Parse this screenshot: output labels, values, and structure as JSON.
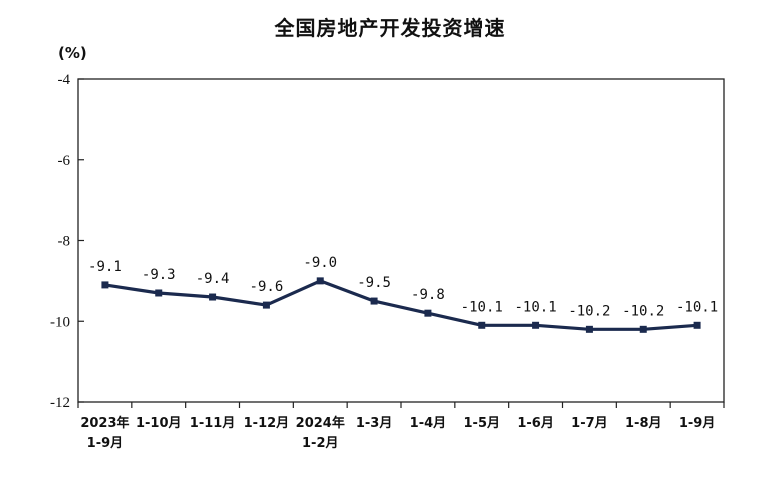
{
  "chart_data": {
    "type": "line",
    "title": "全国房地产开发投资增速",
    "y_unit": "(%)",
    "categories": [
      [
        "2023年",
        "1-9月"
      ],
      [
        "1-10月"
      ],
      [
        "1-11月"
      ],
      [
        "1-12月"
      ],
      [
        "2024年",
        "1-2月"
      ],
      [
        "1-3月"
      ],
      [
        "1-4月"
      ],
      [
        "1-5月"
      ],
      [
        "1-6月"
      ],
      [
        "1-7月"
      ],
      [
        "1-8月"
      ],
      [
        "1-9月"
      ]
    ],
    "values": [
      -9.1,
      -9.3,
      -9.4,
      -9.6,
      -9.0,
      -9.5,
      -9.8,
      -10.1,
      -10.1,
      -10.2,
      -10.2,
      -10.1
    ],
    "data_labels": [
      "-9.1",
      "-9.3",
      "-9.4",
      "-9.6",
      "-9.0",
      "-9.5",
      "-9.8",
      "-10.1",
      "-10.1",
      "-10.2",
      "-10.2",
      "-10.1"
    ],
    "yticks": [
      -4,
      -6,
      -8,
      -10,
      -12
    ],
    "ylim": [
      -12,
      -4
    ],
    "grid": false,
    "line_color": "#1b2a4e"
  }
}
